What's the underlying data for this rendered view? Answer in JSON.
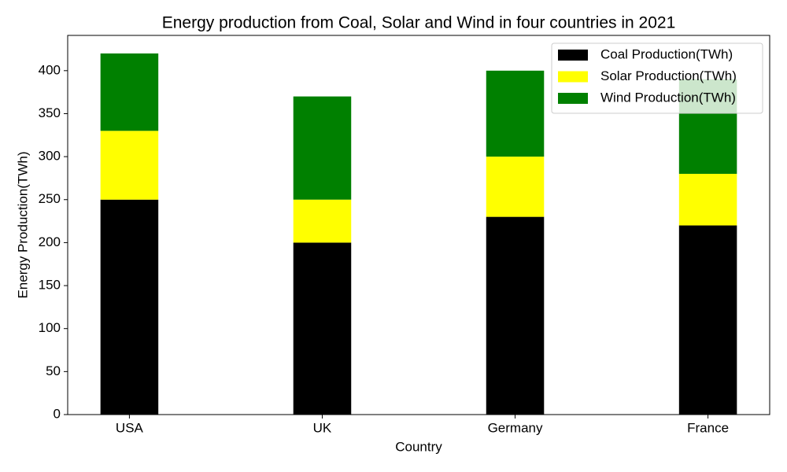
{
  "chart_data": {
    "type": "stacked_bar",
    "title": "Energy production from Coal, Solar and Wind in four countries in 2021",
    "x_label": "Country",
    "y_label": "Energy Production(TWh)",
    "categories": [
      "USA",
      "UK",
      "Germany",
      "France"
    ],
    "series": [
      {
        "name": "Coal Production(TWh)",
        "color": "#000000",
        "values": [
          250,
          200,
          230,
          220
        ],
        "data_labels": true
      },
      {
        "name": "Solar Production(TWh)",
        "color": "#ffff00",
        "values": [
          80,
          50,
          70,
          60
        ]
      },
      {
        "name": "Wind Production(TWh)",
        "color": "#008000",
        "values": [
          90,
          120,
          100,
          110
        ]
      }
    ],
    "ylim": [
      0,
      441
    ],
    "yticks": [
      0,
      50,
      100,
      150,
      200,
      250,
      300,
      350,
      400
    ],
    "grid": false,
    "legend": "upper right"
  }
}
